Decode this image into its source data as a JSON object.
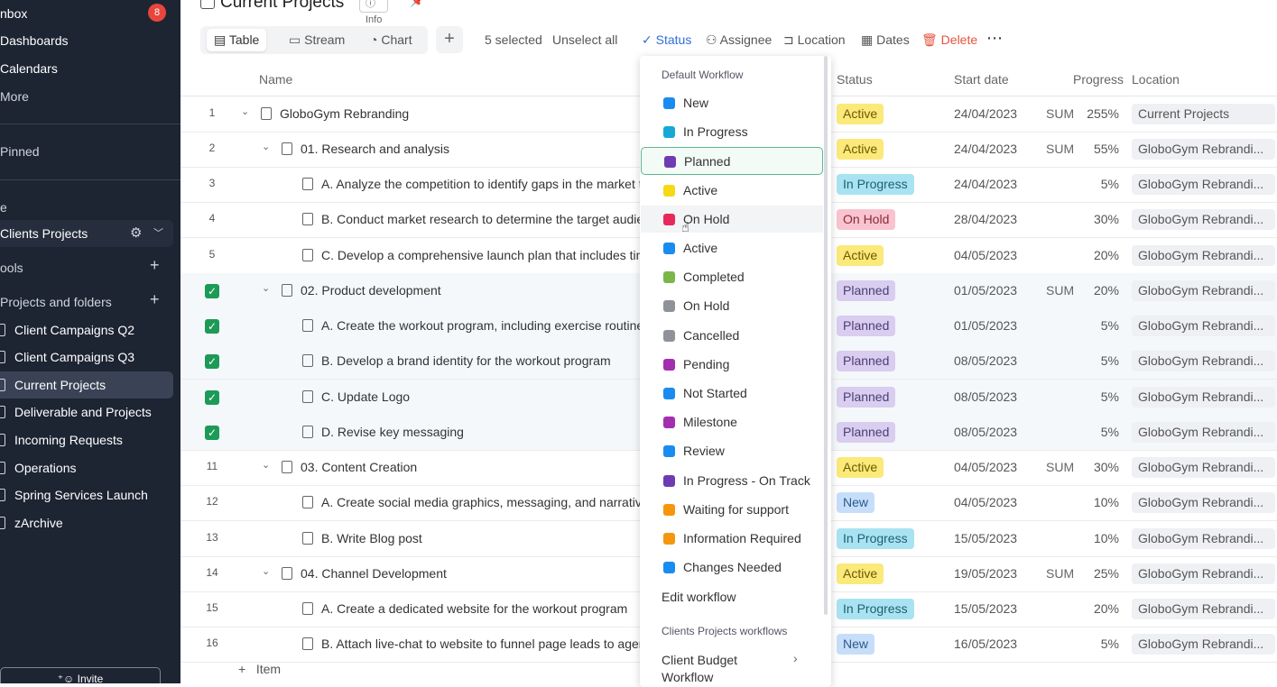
{
  "sidebar": {
    "inbox": "nbox",
    "inbox_badge": "8",
    "dashboards": "Dashboards",
    "calendars": "Calendars",
    "more": "More",
    "pinned": "Pinned",
    "section_e": "e",
    "clients_projects": "Clients Projects",
    "tools": "ools",
    "projects_and_folders": "Projects and folders",
    "projects": [
      {
        "label": "Client Campaigns Q2"
      },
      {
        "label": "Client Campaigns Q3"
      },
      {
        "label": "Current Projects"
      },
      {
        "label": "Deliverable and Projects"
      },
      {
        "label": "Incoming Requests"
      },
      {
        "label": "Operations"
      },
      {
        "label": "Spring Services Launch"
      },
      {
        "label": "zArchive"
      }
    ],
    "invite": "Invite"
  },
  "header": {
    "title": "Current Projects",
    "info": "Info"
  },
  "toolbar": {
    "views": [
      "Table",
      "Stream",
      "Chart"
    ],
    "selected": "5 selected",
    "unselect": "Unselect all",
    "status": "Status",
    "assignee": "Assignee",
    "location": "Location",
    "dates": "Dates",
    "delete": "Delete"
  },
  "table": {
    "headers": {
      "name": "Name",
      "status": "Status",
      "start_date": "Start date",
      "progress": "Progress",
      "location": "Location"
    },
    "rows": [
      {
        "num": "1",
        "name": "GloboGym Rebranding",
        "status": "Active",
        "date": "24/04/2023",
        "sum": "SUM",
        "progress": "255%",
        "location": "Current Projects"
      },
      {
        "num": "2",
        "name": "01. Research and analysis",
        "status": "Active",
        "date": "24/04/2023",
        "sum": "SUM",
        "progress": "55%",
        "location": "GloboGym Rebrandi..."
      },
      {
        "num": "3",
        "name": "A. Analyze the competition to identify gaps in the market th",
        "status": "In Progress",
        "date": "24/04/2023",
        "sum": "",
        "progress": "5%",
        "location": "GloboGym Rebrandi..."
      },
      {
        "num": "4",
        "name": "B. Conduct market research to determine the target audienc",
        "status": "On Hold",
        "date": "28/04/2023",
        "sum": "",
        "progress": "30%",
        "location": "GloboGym Rebrandi..."
      },
      {
        "num": "5",
        "name": "C. Develop a comprehensive launch plan that includes timeli",
        "status": "Active",
        "date": "04/05/2023",
        "sum": "",
        "progress": "20%",
        "location": "GloboGym Rebrandi..."
      },
      {
        "num": "",
        "name": "02. Product development",
        "status": "Planned",
        "date": "01/05/2023",
        "sum": "SUM",
        "progress": "20%",
        "location": "GloboGym Rebrandi..."
      },
      {
        "num": "",
        "name": "A. Create the workout program, including exercise routines,",
        "status": "Planned",
        "date": "01/05/2023",
        "sum": "",
        "progress": "5%",
        "location": "GloboGym Rebrandi..."
      },
      {
        "num": "",
        "name": "B. Develop a brand identity for the workout program",
        "status": "Planned",
        "date": "08/05/2023",
        "sum": "",
        "progress": "5%",
        "location": "GloboGym Rebrandi..."
      },
      {
        "num": "",
        "name": "C. Update Logo",
        "status": "Planned",
        "date": "08/05/2023",
        "sum": "",
        "progress": "5%",
        "location": "GloboGym Rebrandi..."
      },
      {
        "num": "",
        "name": "D. Revise key messaging",
        "status": "Planned",
        "date": "08/05/2023",
        "sum": "",
        "progress": "5%",
        "location": "GloboGym Rebrandi..."
      },
      {
        "num": "11",
        "name": "03. Content Creation",
        "status": "Active",
        "date": "04/05/2023",
        "sum": "SUM",
        "progress": "30%",
        "location": "GloboGym Rebrandi..."
      },
      {
        "num": "12",
        "name": "A. Create social media graphics, messaging, and narrative",
        "status": "New",
        "date": "04/05/2023",
        "sum": "",
        "progress": "10%",
        "location": "GloboGym Rebrandi..."
      },
      {
        "num": "13",
        "name": "B. Write Blog post",
        "status": "In Progress",
        "date": "15/05/2023",
        "sum": "",
        "progress": "10%",
        "location": "GloboGym Rebrandi..."
      },
      {
        "num": "14",
        "name": "04. Channel Development",
        "status": "Active",
        "date": "19/05/2023",
        "sum": "SUM",
        "progress": "25%",
        "location": "GloboGym Rebrandi..."
      },
      {
        "num": "15",
        "name": "A. Create a dedicated website for the workout program",
        "status": "In Progress",
        "date": "15/05/2023",
        "sum": "",
        "progress": "20%",
        "location": "GloboGym Rebrandi..."
      },
      {
        "num": "16",
        "name": "B. Attach live-chat to website to funnel page leads to agents",
        "status": "New",
        "date": "16/05/2023",
        "sum": "",
        "progress": "5%",
        "location": "GloboGym Rebrandi..."
      }
    ],
    "add_item": "Item"
  },
  "status_colors": {
    "Active": {
      "bg": "#fbe97a",
      "fg": "#6b5a00"
    },
    "In Progress": {
      "bg": "#a9e3f2",
      "fg": "#1d5f73"
    },
    "On Hold": {
      "bg": "#f9c4cf",
      "fg": "#8a2a3b"
    },
    "Planned": {
      "bg": "#d9cdf0",
      "fg": "#4d3e73"
    },
    "New": {
      "bg": "#c6def9",
      "fg": "#2c5a8c"
    }
  },
  "dropdown": {
    "default_header": "Default Workflow",
    "items": [
      {
        "label": "New",
        "color": "#1a8cf0"
      },
      {
        "label": "In Progress",
        "color": "#16a9d6"
      },
      {
        "label": "Planned",
        "color": "#6f3bb3"
      },
      {
        "label": "Active",
        "color": "#f5d915"
      },
      {
        "label": "On Hold",
        "color": "#e8285a"
      },
      {
        "label": "Active",
        "color": "#1a8cf0"
      },
      {
        "label": "Completed",
        "color": "#7ab648"
      },
      {
        "label": "On Hold",
        "color": "#8f9399"
      },
      {
        "label": "Cancelled",
        "color": "#8f9399"
      },
      {
        "label": "Pending",
        "color": "#a32fb0"
      },
      {
        "label": "Not Started",
        "color": "#1a8cf0"
      },
      {
        "label": "Milestone",
        "color": "#a32fb0"
      },
      {
        "label": "Review",
        "color": "#1a8cf0"
      },
      {
        "label": "In Progress - On Track",
        "color": "#6f3bb3"
      },
      {
        "label": "Waiting for support",
        "color": "#f5960f"
      },
      {
        "label": "Information Required",
        "color": "#f5960f"
      },
      {
        "label": "Changes Needed",
        "color": "#1a8cf0"
      }
    ],
    "edit_workflow": "Edit workflow",
    "clients_header": "Clients Projects workflows",
    "client_budget_1": "Client Budget",
    "client_budget_2": "Workflow"
  }
}
